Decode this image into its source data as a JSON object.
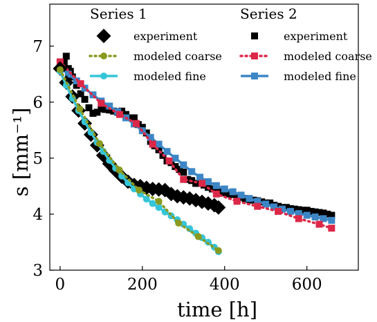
{
  "chart_data": {
    "type": "scatter",
    "xlabel": "time     [h]",
    "ylabel": "s     [mm⁻¹]",
    "xlim": [
      -25,
      725
    ],
    "ylim": [
      3.0,
      7.75
    ],
    "x_ticks": [
      0,
      200,
      400,
      600
    ],
    "y_ticks": [
      3,
      4,
      5,
      6,
      7
    ],
    "grid": false,
    "legend": {
      "placement": "top",
      "groups": [
        {
          "title": "Series 1",
          "entries": [
            {
              "label": "experiment",
              "series": 0
            },
            {
              "label": "modeled coarse",
              "series": 1
            },
            {
              "label": "modeled fine",
              "series": 2
            }
          ]
        },
        {
          "title": "Series 2",
          "entries": [
            {
              "label": "experiment",
              "series": 3
            },
            {
              "label": "modeled coarse",
              "series": 4
            },
            {
              "label": "modeled fine",
              "series": 5
            }
          ]
        }
      ]
    },
    "series": [
      {
        "group": "Series 1",
        "kind": "experiment",
        "color": "#000000",
        "marker": "diamond",
        "line": "none",
        "x": [
          0,
          15,
          30,
          45,
          60,
          75,
          90,
          105,
          120,
          135,
          150,
          165,
          180,
          195,
          210,
          225,
          240,
          255,
          270,
          285,
          300,
          315,
          330,
          345,
          360,
          375,
          385
        ],
        "y": [
          6.6,
          6.35,
          6.1,
          5.85,
          5.62,
          5.42,
          5.23,
          5.05,
          4.9,
          4.78,
          4.67,
          4.58,
          4.52,
          4.5,
          4.47,
          4.45,
          4.44,
          4.43,
          4.36,
          4.32,
          4.3,
          4.28,
          4.25,
          4.22,
          4.19,
          4.16,
          4.12
        ]
      },
      {
        "group": "Series 1",
        "kind": "modeled coarse",
        "color": "#8a9a1f",
        "marker": "circle",
        "line": "dotted",
        "x": [
          0,
          48,
          96,
          144,
          192,
          240,
          288,
          336,
          385
        ],
        "y": [
          6.58,
          5.88,
          5.26,
          4.79,
          4.43,
          4.23,
          3.84,
          3.6,
          3.35
        ]
      },
      {
        "group": "Series 1",
        "kind": "modeled fine",
        "color": "#36c5d8",
        "marker": "circle",
        "line": "solid",
        "x": [
          0,
          15,
          30,
          45,
          60,
          75,
          90,
          105,
          120,
          135,
          150,
          165,
          180,
          195,
          210,
          225,
          240,
          255,
          270,
          285,
          300,
          315,
          330,
          345,
          360,
          375,
          385
        ],
        "y": [
          6.55,
          6.3,
          6.07,
          5.85,
          5.65,
          5.46,
          5.28,
          5.12,
          4.96,
          4.82,
          4.68,
          4.56,
          4.45,
          4.36,
          4.27,
          4.19,
          4.12,
          4.04,
          3.97,
          3.9,
          3.82,
          3.74,
          3.66,
          3.58,
          3.5,
          3.41,
          3.33
        ]
      },
      {
        "group": "Series 2",
        "kind": "experiment",
        "color": "#000000",
        "marker": "square",
        "line": "none",
        "x": [
          10,
          15,
          20,
          25,
          30,
          40,
          50,
          60,
          70,
          80,
          90,
          100,
          110,
          120,
          130,
          140,
          150,
          160,
          170,
          180,
          190,
          200,
          210,
          220,
          230,
          240,
          250,
          260,
          270,
          280,
          290,
          300,
          310,
          320,
          330,
          340,
          350,
          360,
          370,
          380,
          390,
          400,
          410,
          420,
          430,
          440,
          450,
          460,
          470,
          480,
          490,
          500,
          510,
          520,
          530,
          540,
          550,
          560,
          570,
          580,
          590,
          600,
          610,
          620,
          630,
          640,
          650,
          660
        ],
        "y": [
          6.72,
          6.82,
          6.6,
          6.55,
          6.45,
          6.3,
          6.15,
          6.05,
          5.9,
          5.8,
          5.82,
          5.88,
          5.87,
          5.86,
          5.84,
          5.82,
          5.84,
          5.78,
          5.72,
          5.72,
          5.6,
          5.55,
          5.45,
          5.3,
          5.22,
          5.15,
          5.05,
          4.95,
          4.92,
          4.85,
          4.8,
          4.75,
          4.62,
          4.6,
          4.55,
          4.55,
          4.52,
          4.48,
          4.45,
          4.42,
          4.4,
          4.38,
          4.36,
          4.35,
          4.32,
          4.3,
          4.28,
          4.26,
          4.25,
          4.24,
          4.22,
          4.2,
          4.2,
          4.16,
          4.14,
          4.12,
          4.12,
          4.1,
          4.09,
          4.08,
          4.07,
          4.07,
          4.05,
          4.04,
          4.03,
          4.02,
          4.0,
          3.98
        ]
      },
      {
        "group": "Series 2",
        "kind": "modeled coarse",
        "color": "#dc2848",
        "marker": "square",
        "line": "dotted",
        "x": [
          0,
          50,
          100,
          145,
          185,
          225,
          265,
          300,
          345,
          380,
          430,
          480,
          530,
          580,
          630,
          660
        ],
        "y": [
          6.72,
          6.33,
          5.98,
          5.78,
          5.62,
          5.25,
          4.95,
          4.62,
          4.55,
          4.36,
          4.23,
          4.14,
          4.05,
          3.92,
          3.82,
          3.75
        ]
      },
      {
        "group": "Series 2",
        "kind": "modeled fine",
        "color": "#3c86c6",
        "marker": "square",
        "line": "solid",
        "x": [
          0,
          20,
          40,
          60,
          80,
          100,
          120,
          140,
          160,
          180,
          200,
          220,
          240,
          260,
          280,
          300,
          320,
          340,
          360,
          380,
          400,
          420,
          440,
          460,
          480,
          500,
          520,
          540,
          560,
          580,
          600,
          620,
          640,
          660
        ],
        "y": [
          6.62,
          6.5,
          6.38,
          6.25,
          6.13,
          6.02,
          5.93,
          5.83,
          5.72,
          5.61,
          5.49,
          5.37,
          5.25,
          5.12,
          5.0,
          4.88,
          4.76,
          4.66,
          4.58,
          4.51,
          4.45,
          4.4,
          4.34,
          4.28,
          4.23,
          4.18,
          4.13,
          4.09,
          4.05,
          4.01,
          3.98,
          3.95,
          3.92,
          3.89
        ]
      }
    ]
  }
}
